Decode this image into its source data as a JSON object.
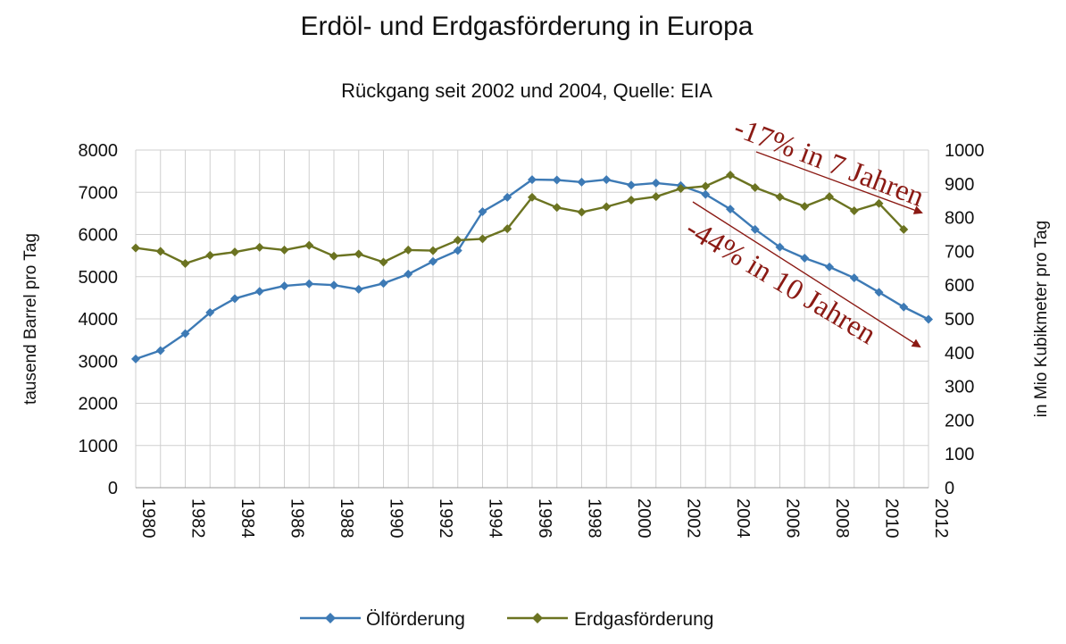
{
  "chart_data": {
    "type": "line",
    "title": "Erdöl- und Erdgasförderung in Europa",
    "subtitle": "Rückgang seit 2002 und 2004, Quelle: EIA",
    "ylabel_left": "tausend Barrel pro Tag",
    "ylabel_right": "in Mio Kubikmeter pro Tag",
    "ylim_left": [
      0,
      8000
    ],
    "ylim_right": [
      0,
      1000
    ],
    "yticks_left": [
      "0",
      "1000",
      "2000",
      "3000",
      "4000",
      "5000",
      "6000",
      "7000",
      "8000"
    ],
    "yticks_right": [
      "0",
      "100",
      "200",
      "300",
      "400",
      "500",
      "600",
      "700",
      "800",
      "900",
      "1000"
    ],
    "x": [
      1980,
      1981,
      1982,
      1983,
      1984,
      1985,
      1986,
      1987,
      1988,
      1989,
      1990,
      1991,
      1992,
      1993,
      1994,
      1995,
      1996,
      1997,
      1998,
      1999,
      2000,
      2001,
      2002,
      2003,
      2004,
      2005,
      2006,
      2007,
      2008,
      2009,
      2010,
      2011,
      2012
    ],
    "xticks": [
      "1980",
      "1982",
      "1984",
      "1986",
      "1988",
      "1990",
      "1992",
      "1994",
      "1996",
      "1998",
      "2000",
      "2002",
      "2004",
      "2006",
      "2008",
      "2010",
      "2012"
    ],
    "grid": true,
    "legend_position": "bottom",
    "series": [
      {
        "name": "Ölförderung",
        "axis": "left",
        "color": "#3d7ab5",
        "values": [
          3050,
          3250,
          3650,
          4150,
          4480,
          4650,
          4780,
          4830,
          4800,
          4700,
          4840,
          5060,
          5360,
          5620,
          6540,
          6880,
          7300,
          7290,
          7240,
          7300,
          7170,
          7220,
          7160,
          6950,
          6600,
          6120,
          5700,
          5440,
          5230,
          4970,
          4630,
          4280,
          3990
        ]
      },
      {
        "name": "Erdgasförderung",
        "axis": "right",
        "color": "#6b7321",
        "values": [
          710,
          700,
          664,
          688,
          698,
          712,
          704,
          718,
          686,
          692,
          668,
          704,
          702,
          733,
          737,
          767,
          860,
          830,
          816,
          832,
          852,
          862,
          886,
          893,
          926,
          889,
          861,
          833,
          862,
          820,
          842,
          765,
          null
        ]
      }
    ],
    "annotations": [
      {
        "text": "-17% in 7 Jahren",
        "color": "#8b1a14"
      },
      {
        "text": "-44% in 10 Jahren",
        "color": "#8b1a14"
      }
    ]
  }
}
